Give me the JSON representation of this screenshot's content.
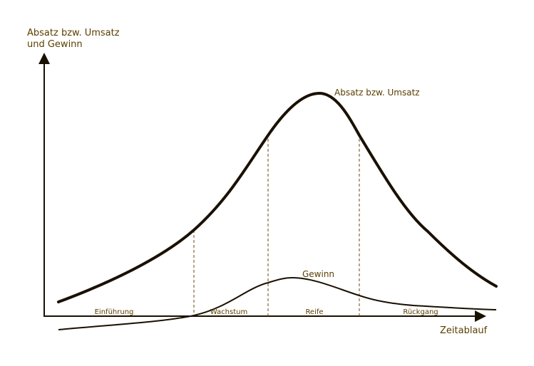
{
  "diagram": {
    "y_axis_label_line1": "Absatz bzw. Umsatz",
    "y_axis_label_line2": "und Gewinn",
    "x_axis_label": "Zeitablauf",
    "sales_curve_label": "Absatz bzw. Umsatz",
    "profit_curve_label": "Gewinn",
    "phases": [
      "Einführung",
      "Wachstum",
      "Reife",
      "Rückgang"
    ],
    "colors": {
      "text": "#5a3e00",
      "line": "#2a1a00",
      "dashed": "#6b4a10"
    }
  }
}
